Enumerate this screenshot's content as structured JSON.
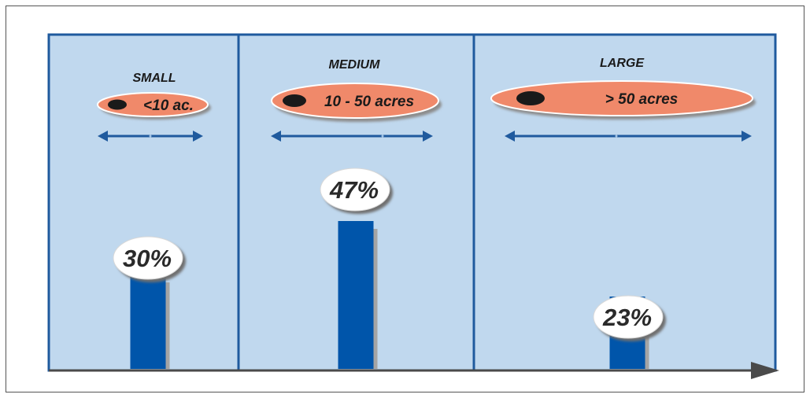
{
  "colors": {
    "panel_fill": "#c0d8ee",
    "panel_border": "#1f5a9e",
    "bar": "#0055aa",
    "bar_shadow": "#a4a4a4",
    "ellipse": "#f0896a",
    "ellipse_shadow": "#8c8c8c",
    "dot": "#1a1a1a",
    "arrow": "#1f5a9e",
    "axis": "#4a4a4a",
    "bubble": "#ffffff"
  },
  "chart_data": {
    "type": "bar",
    "categories": [
      "SMALL",
      "MEDIUM",
      "LARGE"
    ],
    "range_labels": [
      "<10 ac.",
      "10 - 50 acres",
      "> 50 acres"
    ],
    "values": [
      30,
      47,
      23
    ],
    "value_labels": [
      "30%",
      "47%",
      "23%"
    ],
    "unit": "%",
    "ylim": [
      0,
      100
    ],
    "grid": false,
    "legend": "none",
    "title": "",
    "xlabel": "",
    "ylabel": ""
  }
}
